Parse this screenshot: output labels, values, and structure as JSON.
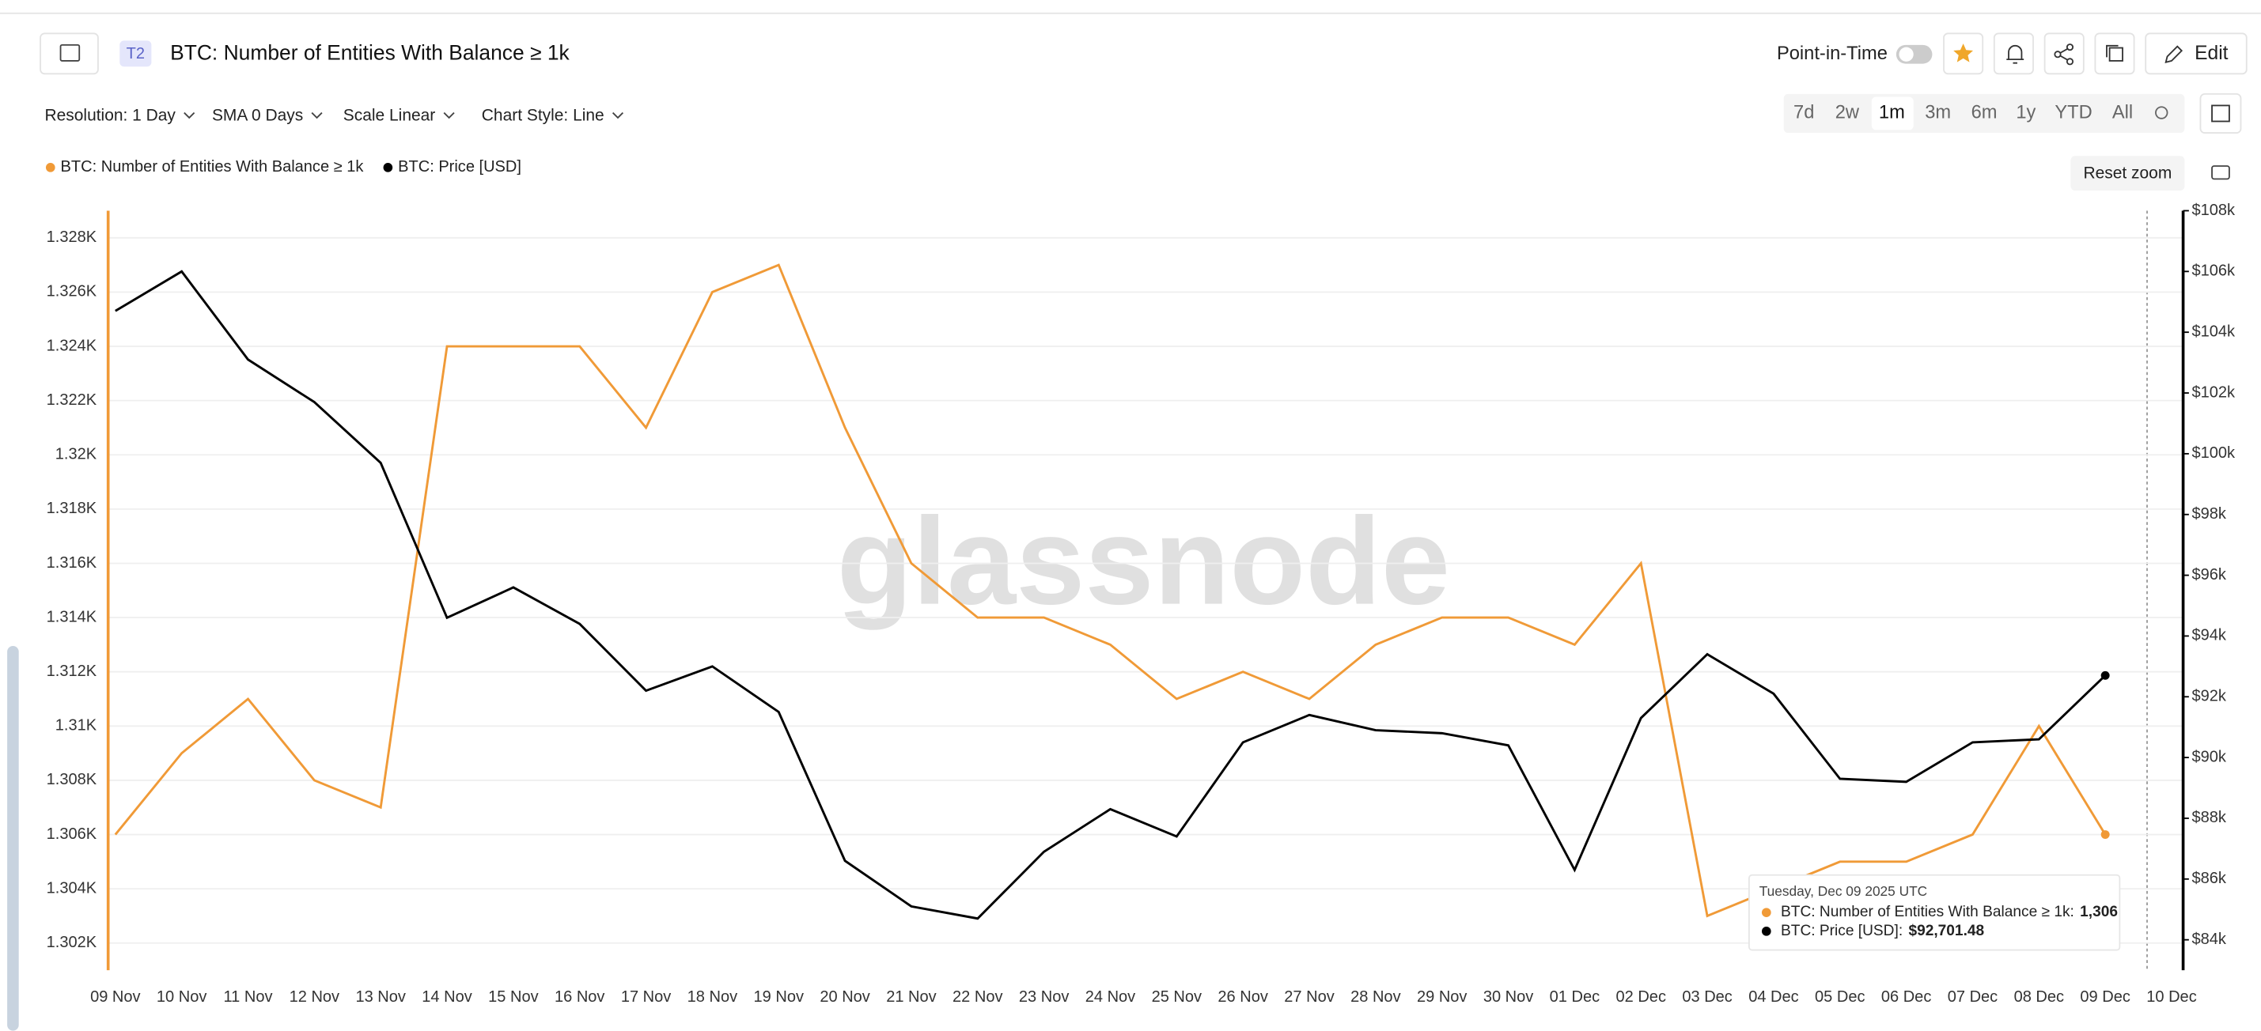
{
  "ui": {
    "badge": "T2",
    "point_in_time": "Point-in-Time",
    "edit": "Edit",
    "controls": [
      "Resolution: 1 Day",
      "SMA 0 Days",
      "Scale Linear",
      "Chart Style: Line"
    ],
    "ranges": [
      "7d",
      "2w",
      "1m",
      "3m",
      "6m",
      "1y",
      "YTD",
      "All"
    ],
    "reset_zoom": "Reset zoom",
    "watermark": "glassnode"
  },
  "chart_data": {
    "type": "line",
    "title": "BTC: Number of Entities With Balance ≥ 1k",
    "categories": [
      "09 Nov",
      "10 Nov",
      "11 Nov",
      "12 Nov",
      "13 Nov",
      "14 Nov",
      "15 Nov",
      "16 Nov",
      "17 Nov",
      "18 Nov",
      "19 Nov",
      "20 Nov",
      "21 Nov",
      "22 Nov",
      "23 Nov",
      "24 Nov",
      "25 Nov",
      "26 Nov",
      "27 Nov",
      "28 Nov",
      "29 Nov",
      "30 Nov",
      "01 Dec",
      "02 Dec",
      "03 Dec",
      "04 Dec",
      "05 Dec",
      "06 Dec",
      "07 Dec",
      "08 Dec",
      "09 Dec",
      "10 Dec"
    ],
    "series": [
      {
        "name": "BTC: Number of Entities With Balance ≥ 1k",
        "color": "#f09a37",
        "values": [
          1306,
          1309,
          1311,
          1308,
          1307,
          1324,
          1324,
          1324,
          1321,
          1326,
          1327,
          1321,
          1316,
          1314,
          1314,
          1313,
          1311,
          1312,
          1311,
          1313,
          1314,
          1314,
          1313,
          1316,
          1303,
          1304,
          1305,
          1305,
          1306,
          1310,
          1306,
          null
        ]
      },
      {
        "name": "BTC: Price [USD]",
        "color": "#000000",
        "axis": "y2",
        "values": [
          104700,
          106000,
          103100,
          101700,
          99700,
          94600,
          95600,
          94400,
          92200,
          93000,
          91500,
          86600,
          85100,
          84700,
          86900,
          88300,
          87400,
          90500,
          91400,
          90900,
          90800,
          90400,
          86300,
          91300,
          93400,
          92100,
          89300,
          89200,
          90500,
          90600,
          92701.48,
          null
        ]
      }
    ],
    "ylim": [
      1301,
      1329
    ],
    "yticks": [
      {
        "value": 1302,
        "label": "1.302K"
      },
      {
        "value": 1304,
        "label": "1.304K"
      },
      {
        "value": 1306,
        "label": "1.306K"
      },
      {
        "value": 1308,
        "label": "1.308K"
      },
      {
        "value": 1310,
        "label": "1.31K"
      },
      {
        "value": 1312,
        "label": "1.312K"
      },
      {
        "value": 1314,
        "label": "1.314K"
      },
      {
        "value": 1316,
        "label": "1.316K"
      },
      {
        "value": 1318,
        "label": "1.318K"
      },
      {
        "value": 1320,
        "label": "1.32K"
      },
      {
        "value": 1322,
        "label": "1.322K"
      },
      {
        "value": 1324,
        "label": "1.324K"
      },
      {
        "value": 1326,
        "label": "1.326K"
      },
      {
        "value": 1328,
        "label": "1.328K"
      }
    ],
    "y2lim": [
      83000,
      108000
    ],
    "y2ticks": [
      {
        "value": 84000,
        "label": "$84k"
      },
      {
        "value": 86000,
        "label": "$86k"
      },
      {
        "value": 88000,
        "label": "$88k"
      },
      {
        "value": 90000,
        "label": "$90k"
      },
      {
        "value": 92000,
        "label": "$92k"
      },
      {
        "value": 94000,
        "label": "$94k"
      },
      {
        "value": 96000,
        "label": "$96k"
      },
      {
        "value": 98000,
        "label": "$98k"
      },
      {
        "value": 100000,
        "label": "$100k"
      },
      {
        "value": 102000,
        "label": "$102k"
      },
      {
        "value": 104000,
        "label": "$104k"
      },
      {
        "value": 106000,
        "label": "$106k"
      },
      {
        "value": 108000,
        "label": "$108k"
      }
    ],
    "grid": true,
    "tooltip": {
      "title": "Tuesday, Dec 09 2025 UTC",
      "separator": ":",
      "value_labels": [
        "1,306",
        "$92,701.48"
      ]
    }
  }
}
